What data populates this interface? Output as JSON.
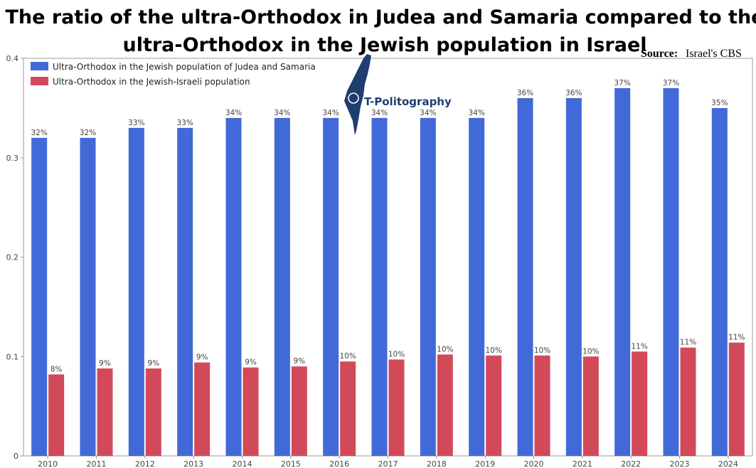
{
  "header": {
    "title_line1": "The ratio of the ultra-Orthodox in Judea and Samaria compared to the",
    "title_line2": "ultra-Orthodox in the Jewish population in Israel",
    "source_label": "Source:",
    "source_value": "Israel's CBS"
  },
  "logo": {
    "text": "T-Politography",
    "icon": "israel-map-icon"
  },
  "colors": {
    "series1": "#4169d8",
    "series2": "#d24a5a",
    "axis": "#9a9a9a",
    "grid": "#e4e4e4"
  },
  "chart_data": {
    "type": "bar",
    "categories": [
      "2010",
      "2011",
      "2012",
      "2013",
      "2014",
      "2015",
      "2016",
      "2017",
      "2018",
      "2019",
      "2020",
      "2021",
      "2022",
      "2023",
      "2024"
    ],
    "series": [
      {
        "name": "Ultra-Orthodox in the Jewish population of Judea and Samaria",
        "values": [
          0.32,
          0.32,
          0.33,
          0.33,
          0.34,
          0.34,
          0.34,
          0.34,
          0.34,
          0.34,
          0.36,
          0.36,
          0.37,
          0.37,
          0.35
        ],
        "labels": [
          "32%",
          "32%",
          "33%",
          "33%",
          "34%",
          "34%",
          "34%",
          "34%",
          "34%",
          "34%",
          "36%",
          "36%",
          "37%",
          "37%",
          "35%"
        ]
      },
      {
        "name": "Ultra-Orthodox in the Jewish-Israeli population",
        "values": [
          0.082,
          0.088,
          0.088,
          0.094,
          0.089,
          0.09,
          0.095,
          0.097,
          0.102,
          0.101,
          0.101,
          0.1,
          0.105,
          0.109,
          0.114
        ],
        "labels": [
          "8%",
          "9%",
          "9%",
          "9%",
          "9%",
          "9%",
          "10%",
          "10%",
          "10%",
          "10%",
          "10%",
          "10%",
          "11%",
          "11%",
          "11%"
        ]
      }
    ],
    "yticks": [
      "0",
      "0.1",
      "0.2",
      "0.3",
      "0.4"
    ],
    "ylim": [
      0,
      0.4
    ],
    "grid": false,
    "legend_position": "top-left"
  }
}
